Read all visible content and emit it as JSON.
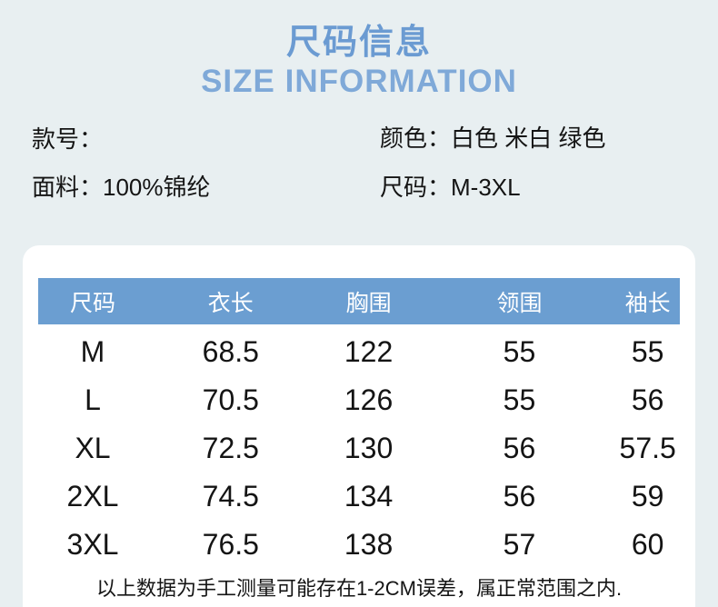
{
  "titles": {
    "zh": "尺码信息",
    "en": "SIZE INFORMATION"
  },
  "product_info": {
    "model": {
      "label": "款号：",
      "value": ""
    },
    "fabric": {
      "label": "面料：",
      "value": "100%锦纶"
    },
    "color": {
      "label": "颜色：",
      "value": "白色 米白 绿色"
    },
    "size": {
      "label": "尺码：",
      "value": "M-3XL"
    }
  },
  "chart_data": {
    "type": "table",
    "title": "尺码信息 SIZE INFORMATION",
    "columns": [
      "尺码",
      "衣长",
      "胸围",
      "领围",
      "袖长"
    ],
    "rows": [
      [
        "M",
        "68.5",
        "122",
        "55",
        "55"
      ],
      [
        "L",
        "70.5",
        "126",
        "55",
        "56"
      ],
      [
        "XL",
        "72.5",
        "130",
        "56",
        "57.5"
      ],
      [
        "2XL",
        "74.5",
        "134",
        "56",
        "59"
      ],
      [
        "3XL",
        "76.5",
        "138",
        "57",
        "60"
      ]
    ]
  },
  "note": "以上数据为手工测量可能存在1-2CM误差，属正常范围之内.",
  "colors": {
    "background": "#e8eff1",
    "title_zh": "#6b9bd2",
    "title_en": "#7fa9d8",
    "table_header_bg": "#6b9ed1",
    "table_header_text": "#ffffff",
    "card_bg": "#ffffff",
    "body_text": "#141414"
  }
}
